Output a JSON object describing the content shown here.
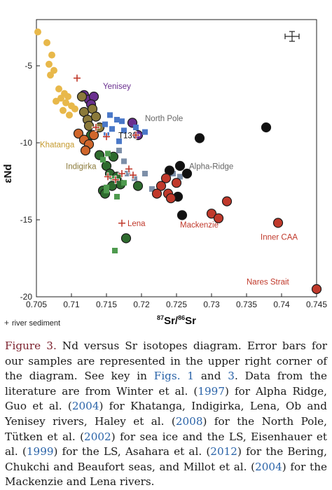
{
  "chart_data": {
    "type": "scatter",
    "xlabel_parts": [
      "87",
      "Sr/",
      "86",
      "Sr"
    ],
    "ylabel": "εNd",
    "xlim": [
      0.705,
      0.745
    ],
    "ylim": [
      -20,
      -2
    ],
    "xticks": [
      "0.705",
      "0.71",
      "0.715",
      "0.72",
      "0.725",
      "0.73",
      "0.735",
      "0.74",
      "0.745"
    ],
    "yticks": [
      "-5",
      "-10",
      "-15",
      "-20"
    ],
    "grid": false,
    "series": [
      {
        "name": "Khatanga",
        "color": "#e8b84a",
        "marker": "circle",
        "points": [
          [
            0.7052,
            -2.8
          ],
          [
            0.7065,
            -3.5
          ],
          [
            0.7072,
            -4.3
          ],
          [
            0.7068,
            -4.9
          ],
          [
            0.7075,
            -5.3
          ],
          [
            0.707,
            -5.6
          ],
          [
            0.7082,
            -6.5
          ],
          [
            0.709,
            -6.8
          ],
          [
            0.7085,
            -7.1
          ],
          [
            0.7078,
            -7.3
          ],
          [
            0.7095,
            -7.0
          ],
          [
            0.71,
            -7.6
          ],
          [
            0.7092,
            -7.4
          ],
          [
            0.7088,
            -7.9
          ],
          [
            0.7097,
            -8.2
          ],
          [
            0.7105,
            -7.8
          ]
        ]
      },
      {
        "name": "Yenisey",
        "color": "#6a2f8f",
        "marker": "circle",
        "points": [
          [
            0.7118,
            -6.9
          ],
          [
            0.7125,
            -7.2
          ],
          [
            0.7132,
            -7.0
          ],
          [
            0.7128,
            -7.5
          ],
          [
            0.7187,
            -8.7
          ],
          [
            0.7195,
            -9.5
          ]
        ]
      },
      {
        "name": "Indigirka",
        "color": "#8b7a3a",
        "marker": "circle",
        "points": [
          [
            0.7115,
            -7.0
          ],
          [
            0.7118,
            -8.0
          ],
          [
            0.7123,
            -8.5
          ],
          [
            0.7125,
            -8.9
          ],
          [
            0.713,
            -7.8
          ],
          [
            0.7135,
            -8.3
          ],
          [
            0.714,
            -9.0
          ]
        ]
      },
      {
        "name": "Lena",
        "color": "#2e6b2e",
        "marker": "circle",
        "points": [
          [
            0.7128,
            -9.5
          ],
          [
            0.714,
            -10.8
          ],
          [
            0.715,
            -11.5
          ],
          [
            0.7155,
            -12.0
          ],
          [
            0.7165,
            -12.2
          ],
          [
            0.717,
            -12.7
          ],
          [
            0.7158,
            -12.8
          ],
          [
            0.7145,
            -13.1
          ],
          [
            0.7148,
            -13.3
          ],
          [
            0.7195,
            -12.8
          ],
          [
            0.7178,
            -16.2
          ],
          [
            0.716,
            -10.9
          ]
        ]
      },
      {
        "name": "sea-ice",
        "color": "#d0662b",
        "marker": "circle",
        "points": [
          [
            0.711,
            -9.4
          ],
          [
            0.7118,
            -9.8
          ],
          [
            0.7125,
            -10.1
          ],
          [
            0.7132,
            -9.5
          ],
          [
            0.712,
            -10.5
          ]
        ]
      },
      {
        "name": "North Pole",
        "color": "#4a78c8",
        "marker": "square",
        "points": [
          [
            0.7155,
            -8.2
          ],
          [
            0.7165,
            -8.5
          ],
          [
            0.7172,
            -8.6
          ],
          [
            0.7148,
            -8.8
          ],
          [
            0.7158,
            -9.1
          ],
          [
            0.7175,
            -9.2
          ],
          [
            0.7192,
            -9.0
          ],
          [
            0.7205,
            -9.3
          ],
          [
            0.7168,
            -9.9
          ],
          [
            0.715,
            -9.5
          ]
        ]
      },
      {
        "name": "Chukchi",
        "color": "#7d8fa8",
        "marker": "square",
        "points": [
          [
            0.7168,
            -10.5
          ],
          [
            0.7175,
            -11.2
          ],
          [
            0.718,
            -12.0
          ],
          [
            0.719,
            -12.3
          ],
          [
            0.7205,
            -12.0
          ],
          [
            0.7215,
            -13.0
          ],
          [
            0.7245,
            -12.0
          ],
          [
            0.7255,
            -12.2
          ]
        ]
      },
      {
        "name": "Bering",
        "color": "#4e9a4e",
        "marker": "square",
        "points": [
          [
            0.7145,
            -11.1
          ],
          [
            0.7152,
            -10.7
          ],
          [
            0.716,
            -12.3
          ],
          [
            0.7175,
            -12.6
          ],
          [
            0.715,
            -12.9
          ],
          [
            0.7165,
            -13.5
          ],
          [
            0.7162,
            -17.0
          ],
          [
            0.715,
            -13.1
          ]
        ]
      },
      {
        "name": "Alpha-Ridge",
        "color": "#111111",
        "marker": "circle",
        "points": [
          [
            0.724,
            -11.8
          ],
          [
            0.7252,
            -13.5
          ],
          [
            0.7255,
            -11.5
          ],
          [
            0.7265,
            -12.0
          ],
          [
            0.7258,
            -14.7
          ],
          [
            0.7283,
            -9.7
          ],
          [
            0.7378,
            -9.0
          ]
        ]
      },
      {
        "name": "Mackenzie",
        "color": "#c0392b",
        "marker": "circle",
        "points": [
          [
            0.7235,
            -12.3
          ],
          [
            0.7228,
            -12.8
          ],
          [
            0.7238,
            -13.3
          ],
          [
            0.7222,
            -13.3
          ],
          [
            0.7242,
            -13.6
          ],
          [
            0.73,
            -14.6
          ],
          [
            0.731,
            -14.9
          ],
          [
            0.7322,
            -13.8
          ],
          [
            0.725,
            -12.6
          ]
        ]
      },
      {
        "name": "Inner CAA",
        "color": "#c0392b",
        "marker": "circle",
        "points": [
          [
            0.7395,
            -15.2
          ]
        ]
      },
      {
        "name": "Nares Strait",
        "color": "#c0392b",
        "marker": "circle",
        "points": [
          [
            0.745,
            -19.5
          ]
        ]
      },
      {
        "name": "river sediment",
        "color": "#c0392b",
        "marker": "plus",
        "points": [
          [
            0.7108,
            -5.8
          ],
          [
            0.7135,
            -9.0
          ],
          [
            0.715,
            -9.6
          ],
          [
            0.7152,
            -12.2
          ],
          [
            0.7163,
            -12.4
          ],
          [
            0.7172,
            -12.0
          ],
          [
            0.7182,
            -11.7
          ],
          [
            0.7188,
            -12.1
          ],
          [
            0.7192,
            -9.5
          ]
        ]
      }
    ],
    "annotations": [
      {
        "text": "Yenisey",
        "color": "#6a2f8f",
        "at": [
          0.7145,
          -6.5
        ]
      },
      {
        "text": "North Pole",
        "color": "#666666",
        "at": [
          0.7205,
          -8.6
        ]
      },
      {
        "text": "T13",
        "color": "#111111",
        "at": [
          0.7167,
          -9.7
        ]
      },
      {
        "text": "Khatanga",
        "color": "#c59a2e",
        "at": [
          0.7055,
          -10.3
        ]
      },
      {
        "text": "Indigirka",
        "color": "#8b7a3a",
        "at": [
          0.7092,
          -11.7
        ]
      },
      {
        "text": "Alpha-Ridge",
        "color": "#666666",
        "at": [
          0.7268,
          -11.7
        ]
      },
      {
        "text": "Lena",
        "color": "#c0392b",
        "at": [
          0.718,
          -15.4
        ]
      },
      {
        "text": "Mackenzie",
        "color": "#c0392b",
        "at": [
          0.7255,
          -15.5
        ]
      },
      {
        "text": "Inner CAA",
        "color": "#c0392b",
        "at": [
          0.737,
          -16.3
        ]
      },
      {
        "text": "Nares Strait",
        "color": "#c0392b",
        "at": [
          0.735,
          -19.2
        ]
      }
    ],
    "legend": {
      "symbol": "+",
      "label": "river sediment",
      "placement": "bottom-left"
    },
    "error_bar": {
      "placement": "top-right"
    }
  },
  "caption": {
    "label": "Figure 3.",
    "p1": " Nd versus Sr isotopes diagram. Error bars for our samples are represented in the upper right corner of the diagram. See key in ",
    "figs_link": "Figs. 1",
    "p2": " and ",
    "fig3_link": "3",
    "p3": ". Data from the literature are from Winter et al. (",
    "y1997": "1997",
    "p4": ") for Alpha Ridge, Guo et al. (",
    "y2004a": "2004",
    "p5": ") for Khatanga, Indigirka, Lena, Ob and Yenisey rivers, Haley et al. (",
    "y2008": "2008",
    "p6": ") for the North Pole, Tütken et al. (",
    "y2002": "2002",
    "p7": ") for sea ice and the LS, Eisenhauer et al. (",
    "y1999": "1999",
    "p8": ") for the LS, Asahara et al. (",
    "y2012": "2012",
    "p9": ") for the Bering, Chukchi and Beaufort seas, and Millot et al. (",
    "y2004b": "2004",
    "p10": ") for the Mackenzie and Lena rivers."
  }
}
